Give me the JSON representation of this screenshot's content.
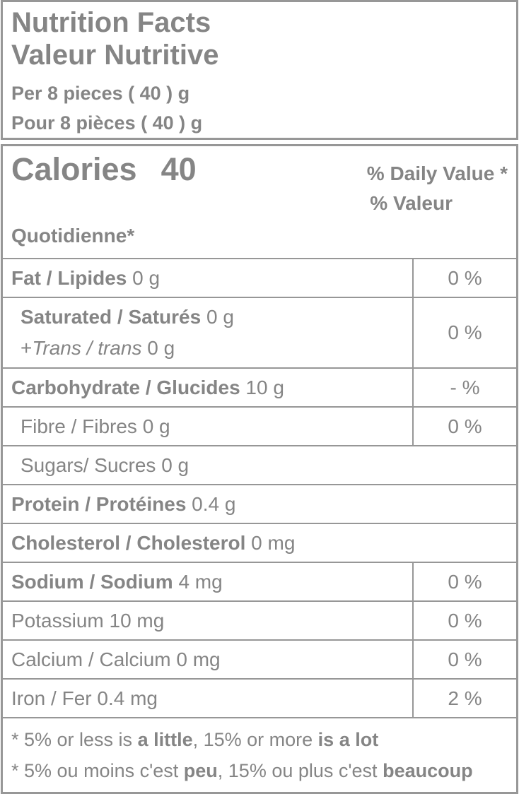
{
  "colors": {
    "text_gray": "#858585",
    "line_gray": "#979797",
    "background": "#ffffff"
  },
  "header": {
    "title_en": "Nutrition Facts",
    "title_fr": "Valeur Nutritive",
    "serving_en": "Per 8 pieces ( 40 ) g",
    "serving_fr": "Pour 8 pièces ( 40 ) g"
  },
  "calories": {
    "label": "Calories",
    "value": "40"
  },
  "daily_value_header": {
    "en": "% Daily Value *",
    "fr_line1": "% Valeur",
    "fr_line2": "Quotidienne*"
  },
  "rows": [
    {
      "key": "fat",
      "indent": false,
      "dv": "0 %",
      "lines": [
        [
          {
            "t": "Fat / Lipides",
            "b": true
          },
          {
            "t": " 0 g"
          }
        ]
      ]
    },
    {
      "key": "saturated-trans",
      "indent": true,
      "dv": "0 %",
      "lines": [
        [
          {
            "t": "Saturated / Saturés",
            "b": true
          },
          {
            "t": " 0 g"
          }
        ],
        [
          {
            "t": "+"
          },
          {
            "t": "Trans / trans",
            "i": true
          },
          {
            "t": " 0 g"
          }
        ]
      ]
    },
    {
      "key": "carbohydrate",
      "indent": false,
      "dv": "- %",
      "lines": [
        [
          {
            "t": "Carbohydrate / Glucides",
            "b": true
          },
          {
            "t": " 10 g"
          }
        ]
      ]
    },
    {
      "key": "fibre",
      "indent": true,
      "dv": "0 %",
      "lines": [
        [
          {
            "t": "Fibre / Fibres 0 g"
          }
        ]
      ]
    },
    {
      "key": "sugars",
      "indent": true,
      "dv": null,
      "lines": [
        [
          {
            "t": "Sugars/ Sucres 0 g"
          }
        ]
      ]
    },
    {
      "key": "protein",
      "indent": false,
      "dv": null,
      "lines": [
        [
          {
            "t": "Protein / Protéines",
            "b": true
          },
          {
            "t": " 0.4 g"
          }
        ]
      ]
    },
    {
      "key": "cholesterol",
      "indent": false,
      "dv": null,
      "lines": [
        [
          {
            "t": "Cholesterol / Cholesterol",
            "b": true
          },
          {
            "t": " 0 mg"
          }
        ]
      ]
    },
    {
      "key": "sodium",
      "indent": false,
      "dv": "0 %",
      "lines": [
        [
          {
            "t": "Sodium / Sodium",
            "b": true
          },
          {
            "t": " 4 mg"
          }
        ]
      ]
    },
    {
      "key": "potassium",
      "indent": false,
      "dv": "0 %",
      "lines": [
        [
          {
            "t": "Potassium 10 mg"
          }
        ]
      ]
    },
    {
      "key": "calcium",
      "indent": false,
      "dv": "0 %",
      "lines": [
        [
          {
            "t": "Calcium / Calcium 0 mg"
          }
        ]
      ]
    },
    {
      "key": "iron",
      "indent": false,
      "dv": "2 %",
      "lines": [
        [
          {
            "t": "Iron / Fer 0.4 mg"
          }
        ]
      ]
    }
  ],
  "footnotes": [
    [
      {
        "t": "* 5% or less is "
      },
      {
        "t": "a little",
        "b": true
      },
      {
        "t": ", 15% or more "
      },
      {
        "t": "is a lot",
        "b": true
      }
    ],
    [
      {
        "t": "* 5% ou moins c'est "
      },
      {
        "t": "peu",
        "b": true
      },
      {
        "t": ", 15% ou plus c'est "
      },
      {
        "t": "beaucoup",
        "b": true
      }
    ]
  ]
}
